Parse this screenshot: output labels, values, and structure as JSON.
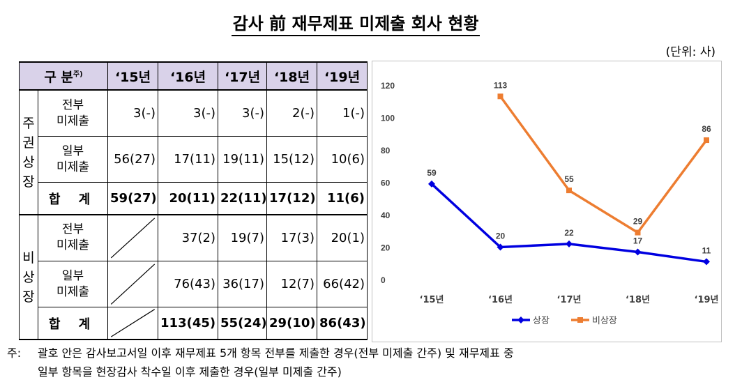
{
  "title": "감사 前 재무제표 미제출 회사 현황",
  "unit": "(단위: 사)",
  "table": {
    "header": {
      "label": "구 분",
      "footnote_mark": "주)",
      "years": [
        "‘15년",
        "‘16년",
        "‘17년",
        "‘18년",
        "‘19년"
      ]
    },
    "groups": [
      {
        "name": "주권상장",
        "rows": [
          {
            "label": [
              "전부",
              "미제출"
            ],
            "values": [
              "3(-)",
              "3(-)",
              "3(-)",
              "2(-)",
              "1(-)"
            ]
          },
          {
            "label": [
              "일부",
              "미제출"
            ],
            "values": [
              "56(27)",
              "17(11)",
              "19(11)",
              "15(12)",
              "10(6)"
            ]
          },
          {
            "label": [
              "합 계"
            ],
            "sum": true,
            "values": [
              "59(27)",
              "20(11)",
              "22(11)",
              "17(12)",
              "11(6)"
            ]
          }
        ]
      },
      {
        "name": "비상장",
        "rows": [
          {
            "label": [
              "전부",
              "미제출"
            ],
            "values": [
              null,
              "37(2)",
              "19(7)",
              "17(3)",
              "20(1)"
            ]
          },
          {
            "label": [
              "일부",
              "미제출"
            ],
            "values": [
              null,
              "76(43)",
              "36(17)",
              "12(7)",
              "66(42)"
            ]
          },
          {
            "label": [
              "합 계"
            ],
            "sum": true,
            "values": [
              null,
              "113(45)",
              "55(24)",
              "29(10)",
              "86(43)"
            ]
          }
        ]
      }
    ]
  },
  "chart_data": {
    "type": "line",
    "categories": [
      "‘15년",
      "‘16년",
      "‘17년",
      "‘18년",
      "‘19년"
    ],
    "series": [
      {
        "name": "상장",
        "color": "#0000e0",
        "values": [
          59,
          20,
          22,
          17,
          11
        ]
      },
      {
        "name": "비상장",
        "color": "#ed7d31",
        "values": [
          null,
          113,
          55,
          29,
          86
        ]
      }
    ],
    "ylim": [
      0,
      120
    ],
    "yticks": [
      0,
      20,
      40,
      60,
      80,
      100,
      120
    ],
    "grid": false,
    "legend": "bottom"
  },
  "note": {
    "mark": "주:",
    "line1": "괄호 안은 감사보고서일 이후 재무제표 5개 항목 전부를 제출한 경우(전부 미제출 간주) 및 재무제표 중",
    "line2": "일부 항목을 현장감사 착수일 이후 제출한 경우(일부 미제출 간주)"
  }
}
